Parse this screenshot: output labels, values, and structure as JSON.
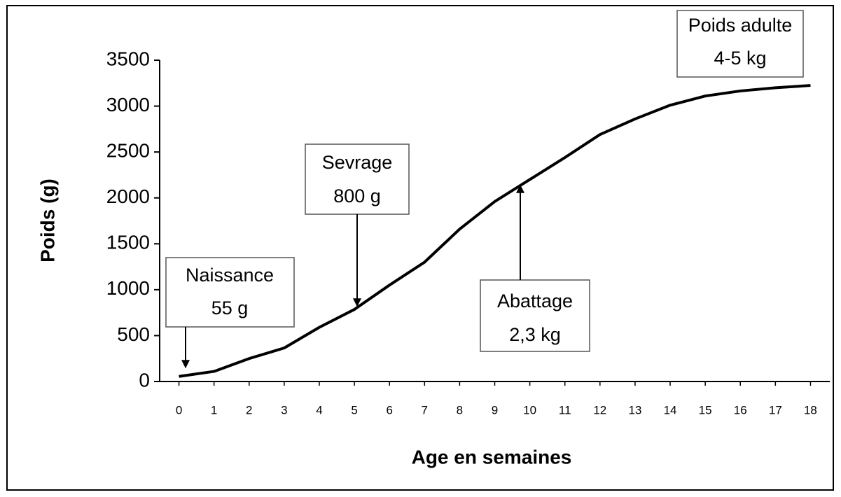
{
  "chart_data": {
    "type": "line",
    "xlabel": "Age en semaines",
    "ylabel": "Poids (g)",
    "x": [
      0,
      1,
      2,
      3,
      4,
      5,
      6,
      7,
      8,
      9,
      10,
      11,
      12,
      13,
      14,
      15,
      16,
      17,
      18
    ],
    "series": [
      {
        "color": "#000000",
        "values": [
          55,
          110,
          250,
          365,
          590,
          785,
          1050,
          1300,
          1660,
          1960,
          2200,
          2440,
          2690,
          2860,
          3010,
          3110,
          3165,
          3200,
          3225
        ]
      }
    ],
    "xlim": [
      -0.55,
      18.55
    ],
    "xticks": [
      0,
      1,
      2,
      3,
      4,
      5,
      6,
      7,
      8,
      9,
      10,
      11,
      12,
      13,
      14,
      15,
      16,
      17,
      18
    ],
    "ylim": [
      0,
      3500
    ],
    "yticks": [
      0,
      500,
      1000,
      1500,
      2000,
      2500,
      3000,
      3500
    ],
    "annotations": [
      [
        "Naissance",
        "55 g"
      ],
      [
        "Sevrage",
        "800 g"
      ],
      [
        "Abattage",
        "2,3 kg"
      ],
      [
        "Poids adulte",
        "4-5 kg"
      ]
    ]
  }
}
